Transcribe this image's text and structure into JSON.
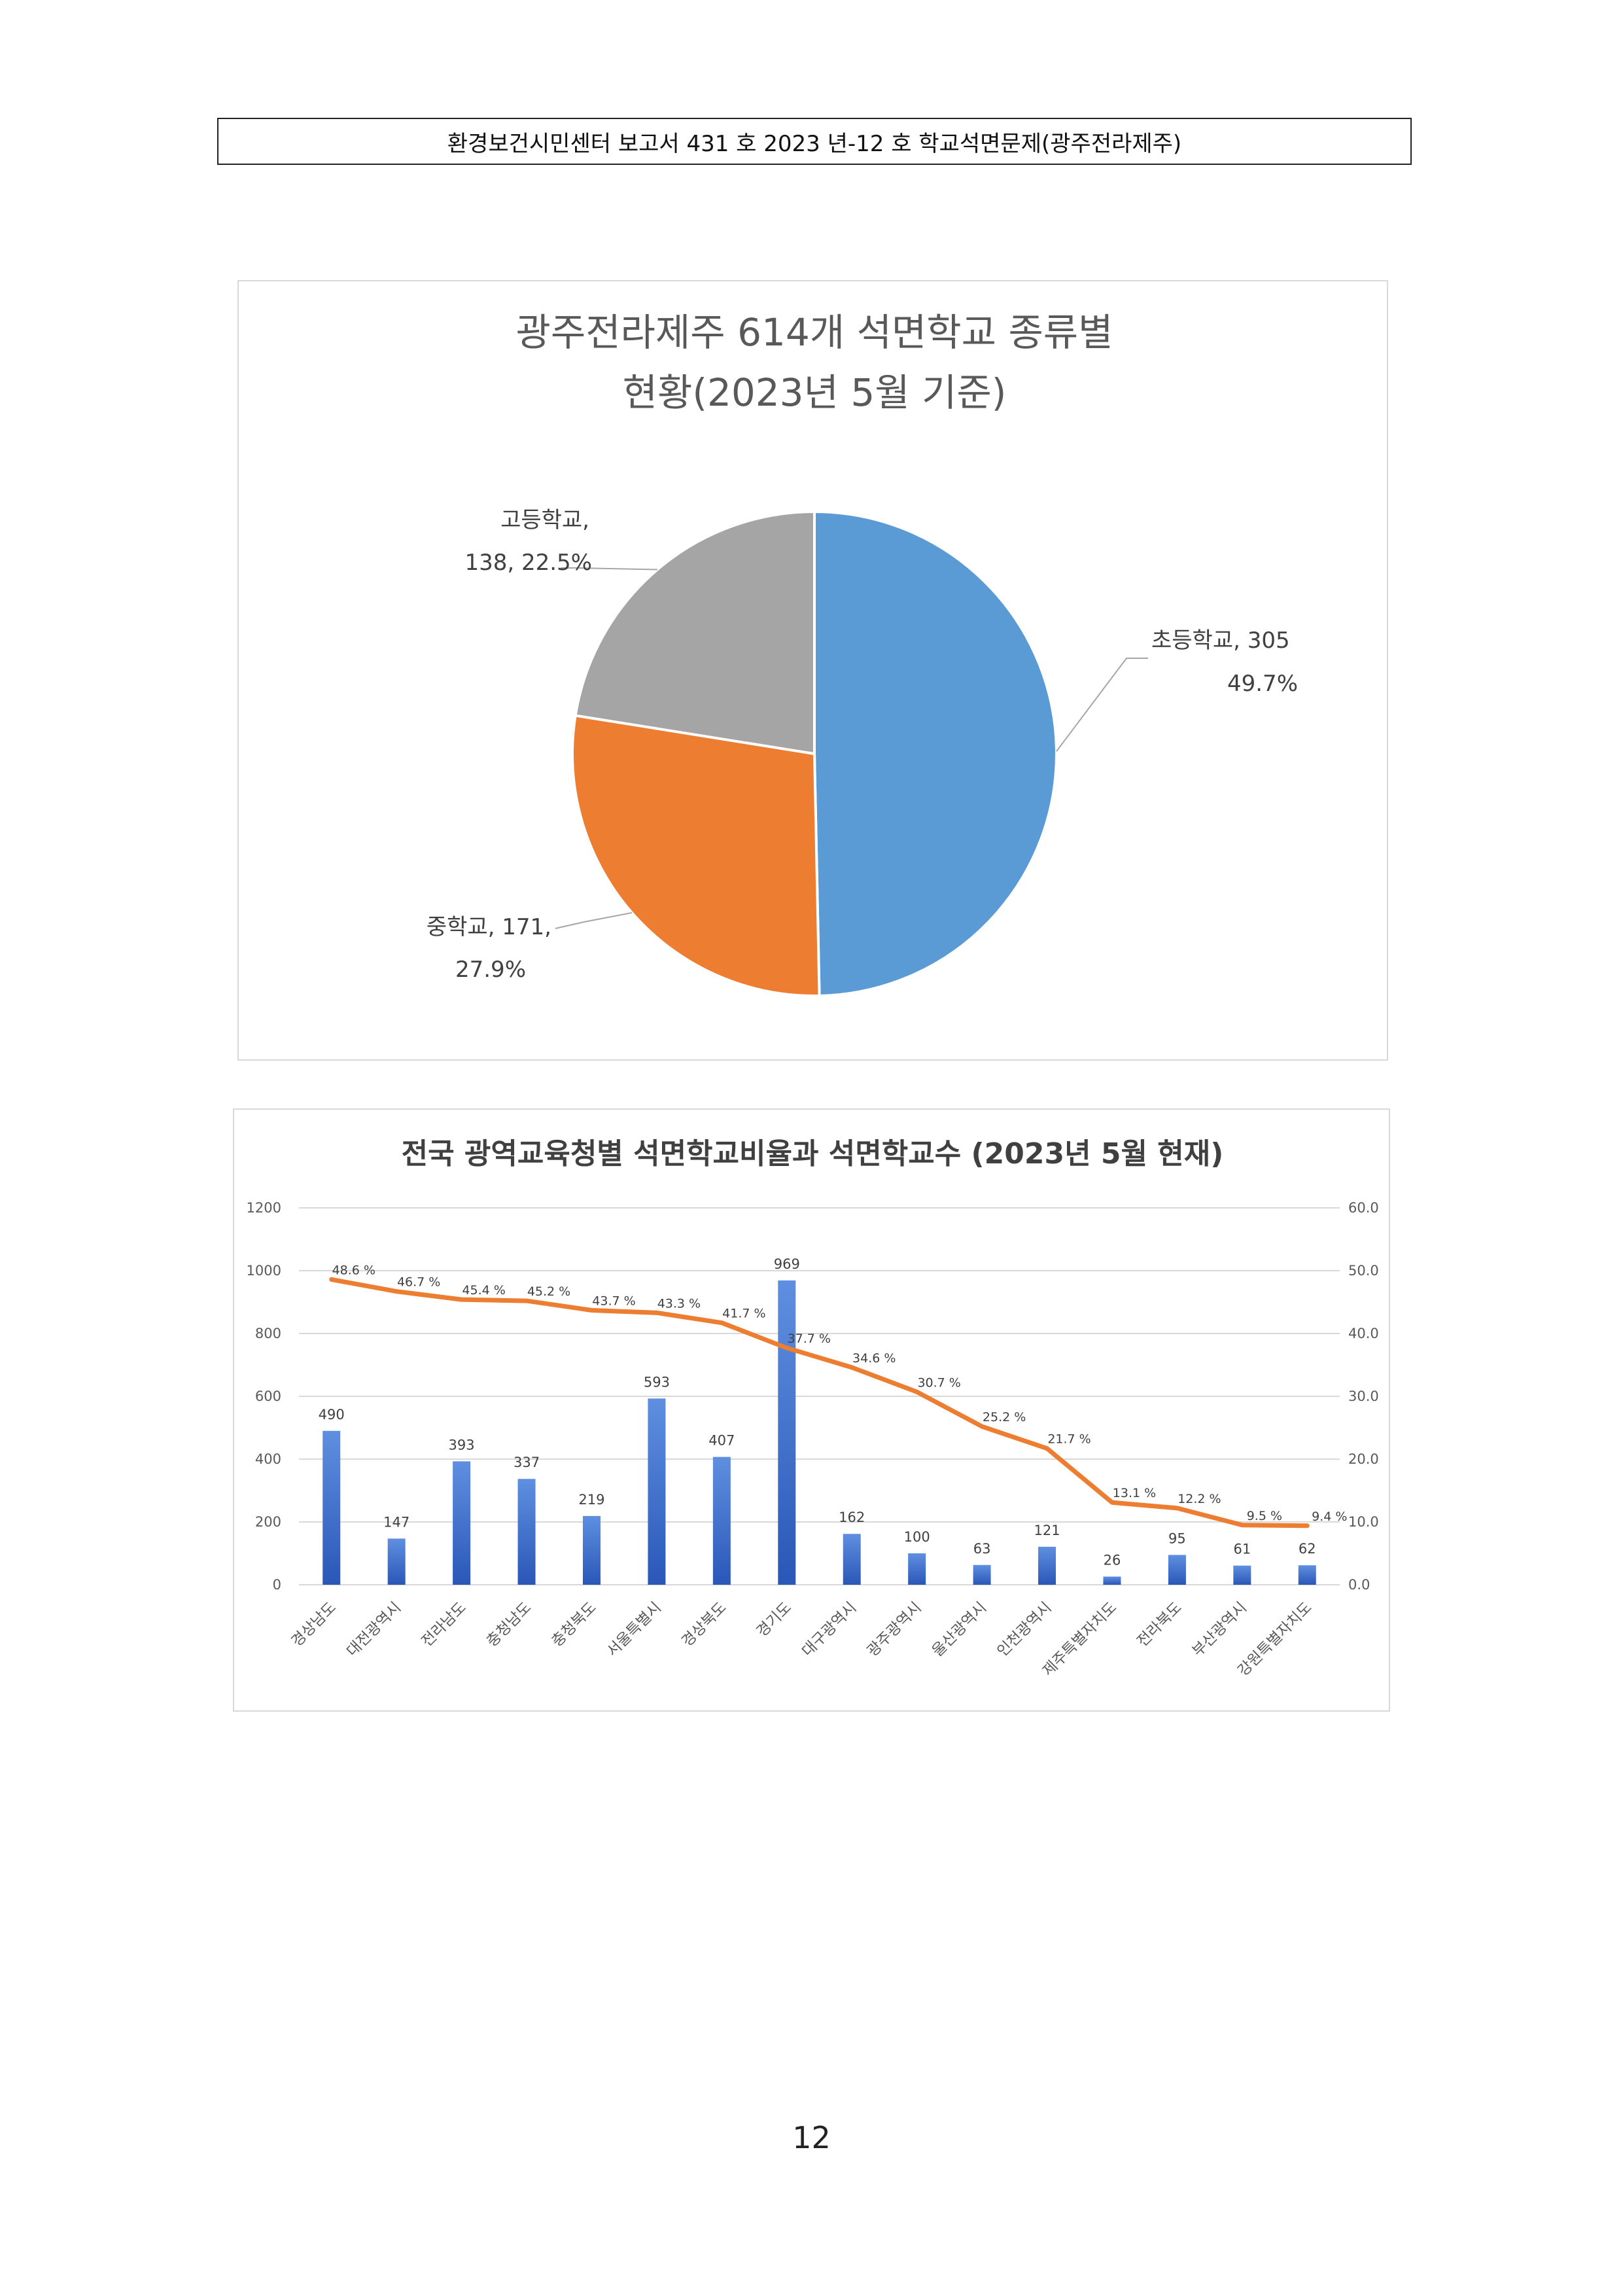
{
  "header": {
    "text": "환경보건시민센터 보고서 431 호 2023 년-12 호 학교석면문제(광주전라제주)"
  },
  "page_number": "12",
  "chart_data": [
    {
      "type": "pie",
      "title_line1": "광주전라제주 614개 석면학교 종류별",
      "title_line2": "현황(2023년 5월 기준)",
      "slices": [
        {
          "name": "초등학교",
          "value": 305,
          "percent": "49.7%",
          "label_line1": "초등학교, 305",
          "label_line2": "49.7%",
          "color": "#5B9BD5"
        },
        {
          "name": "중학교",
          "value": 171,
          "percent": "27.9%",
          "label_line1": "중학교, 171,",
          "label_line2": "27.9%",
          "color": "#ED7D31"
        },
        {
          "name": "고등학교",
          "value": 138,
          "percent": "22.5%",
          "label_line1": "고등학교,",
          "label_line2": "138, 22.5%",
          "color": "#A5A5A5"
        }
      ]
    },
    {
      "type": "bar",
      "title": "전국 광역교육청별 석면학교비율과 석면학교수 (2023년 5월 현재)",
      "categories": [
        "경상남도",
        "대전광역시",
        "전라남도",
        "충청남도",
        "충청북도",
        "서울특별시",
        "경상북도",
        "경기도",
        "대구광역시",
        "광주광역시",
        "울산광역시",
        "인천광역시",
        "제주특별자치도",
        "전라북도",
        "부산광역시",
        "강원특별자치도"
      ],
      "bar_values": [
        490,
        147,
        393,
        337,
        219,
        593,
        407,
        969,
        162,
        100,
        63,
        121,
        26,
        95,
        61,
        62
      ],
      "line_values": [
        48.6,
        46.7,
        45.4,
        45.2,
        43.7,
        43.3,
        41.7,
        37.7,
        34.6,
        30.7,
        25.2,
        21.7,
        13.1,
        12.2,
        9.5,
        9.4
      ],
      "line_labels": [
        "48.6 %",
        "46.7 %",
        "45.4 %",
        "45.2 %",
        "43.7 %",
        "43.3 %",
        "41.7 %",
        "37.7 %",
        "34.6 %",
        "30.7 %",
        "25.2 %",
        "21.7 %",
        "13.1 %",
        "12.2 %",
        "9.5 %",
        "9.4 %"
      ],
      "y_left": {
        "ticks": [
          "0",
          "200",
          "400",
          "600",
          "800",
          "1000",
          "1200"
        ],
        "lim": [
          0,
          1200
        ]
      },
      "y_right": {
        "ticks": [
          "0.0",
          "10.0",
          "20.0",
          "30.0",
          "40.0",
          "50.0",
          "60.0"
        ],
        "lim": [
          0,
          60
        ]
      },
      "grid": true,
      "bar_color": "#4472C4",
      "line_color": "#ED7D31"
    }
  ]
}
